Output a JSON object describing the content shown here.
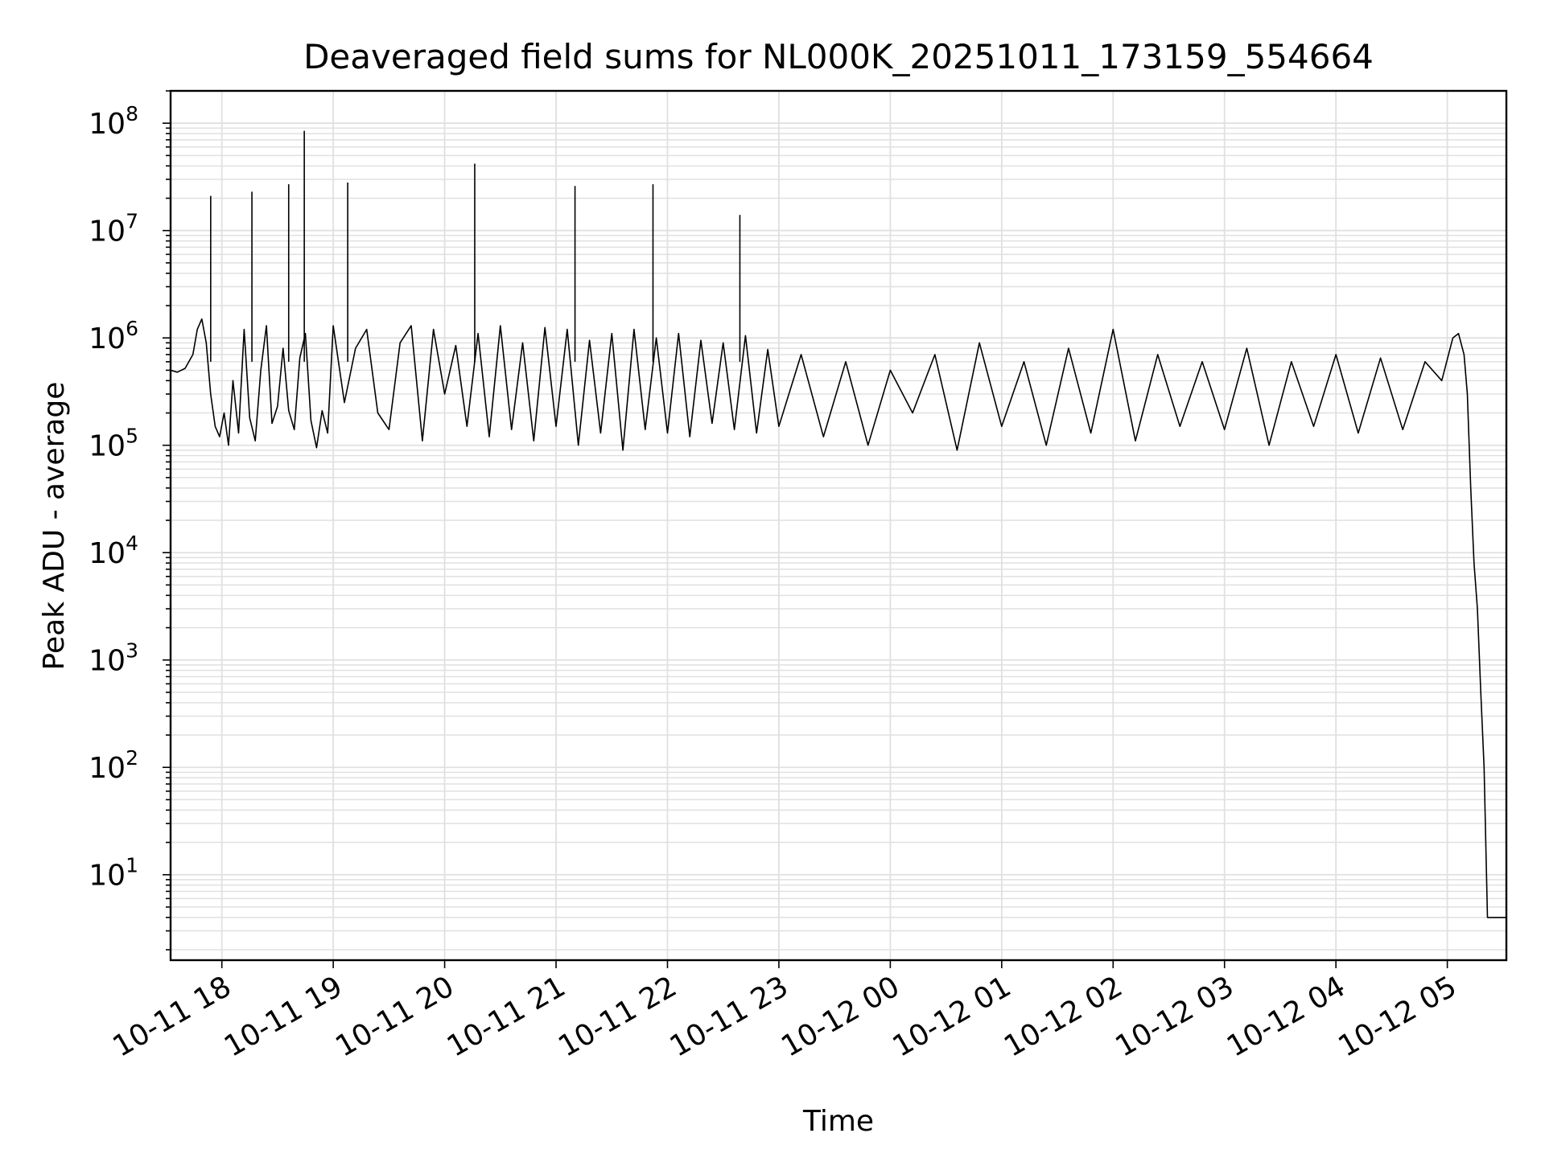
{
  "chart_data": {
    "type": "line",
    "title": "Deaveraged field sums for NL000K_20251011_173159_554664",
    "xlabel": "Time",
    "ylabel": "Peak ADU - average",
    "yscale": "log",
    "ylim": [
      1.6,
      200000000
    ],
    "xlim_hours": [
      -0.46,
      11.53
    ],
    "grid": true,
    "grid_minor": true,
    "line_color": "#000000",
    "grid_color": "#e0e0e0",
    "x_ticks": [
      {
        "hour": 0,
        "label": "10-11 18"
      },
      {
        "hour": 1,
        "label": "10-11 19"
      },
      {
        "hour": 2,
        "label": "10-11 20"
      },
      {
        "hour": 3,
        "label": "10-11 21"
      },
      {
        "hour": 4,
        "label": "10-11 22"
      },
      {
        "hour": 5,
        "label": "10-11 23"
      },
      {
        "hour": 6,
        "label": "10-12 00"
      },
      {
        "hour": 7,
        "label": "10-12 01"
      },
      {
        "hour": 8,
        "label": "10-12 02"
      },
      {
        "hour": 9,
        "label": "10-12 03"
      },
      {
        "hour": 10,
        "label": "10-12 04"
      },
      {
        "hour": 11,
        "label": "10-12 05"
      }
    ],
    "y_ticks": [
      {
        "exp": 1,
        "base": "10",
        "sup": "1"
      },
      {
        "exp": 2,
        "base": "10",
        "sup": "2"
      },
      {
        "exp": 3,
        "base": "10",
        "sup": "3"
      },
      {
        "exp": 4,
        "base": "10",
        "sup": "4"
      },
      {
        "exp": 5,
        "base": "10",
        "sup": "5"
      },
      {
        "exp": 6,
        "base": "10",
        "sup": "6"
      },
      {
        "exp": 7,
        "base": "10",
        "sup": "7"
      },
      {
        "exp": 8,
        "base": "10",
        "sup": "8"
      }
    ],
    "series": [
      {
        "name": "Peak ADU - average",
        "x_hours": [
          -0.46,
          -0.4,
          -0.33,
          -0.26,
          -0.22,
          -0.18,
          -0.14,
          -0.1,
          -0.06,
          -0.02,
          0.02,
          0.06,
          0.1,
          0.15,
          0.2,
          0.25,
          0.3,
          0.35,
          0.4,
          0.45,
          0.5,
          0.55,
          0.6,
          0.65,
          0.7,
          0.75,
          0.8,
          0.85,
          0.9,
          0.95,
          1.0,
          1.1,
          1.2,
          1.3,
          1.4,
          1.5,
          1.6,
          1.7,
          1.8,
          1.9,
          2.0,
          2.1,
          2.2,
          2.3,
          2.4,
          2.5,
          2.6,
          2.7,
          2.8,
          2.9,
          3.0,
          3.1,
          3.2,
          3.3,
          3.4,
          3.5,
          3.6,
          3.7,
          3.8,
          3.9,
          4.0,
          4.1,
          4.2,
          4.3,
          4.4,
          4.5,
          4.6,
          4.7,
          4.8,
          4.9,
          5.0,
          5.2,
          5.4,
          5.6,
          5.8,
          6.0,
          6.2,
          6.4,
          6.6,
          6.8,
          7.0,
          7.2,
          7.4,
          7.6,
          7.8,
          8.0,
          8.2,
          8.4,
          8.6,
          8.8,
          9.0,
          9.2,
          9.4,
          9.6,
          9.8,
          10.0,
          10.2,
          10.4,
          10.6,
          10.8,
          10.95,
          11.05,
          11.1,
          11.15,
          11.18,
          11.21,
          11.24,
          11.27,
          11.3,
          11.33,
          11.36,
          11.4,
          11.45,
          11.53
        ],
        "values": [
          500000,
          480000,
          520000,
          700000,
          1200000,
          1500000,
          900000,
          300000,
          150000,
          120000,
          200000,
          100000,
          400000,
          130000,
          1200000,
          180000,
          110000,
          500000,
          1300000,
          160000,
          230000,
          800000,
          210000,
          140000,
          650000,
          1100000,
          170000,
          95000,
          210000,
          130000,
          1300000,
          250000,
          800000,
          1200000,
          200000,
          140000,
          900000,
          1300000,
          110000,
          1200000,
          300000,
          850000,
          150000,
          1100000,
          120000,
          1300000,
          140000,
          900000,
          110000,
          1250000,
          150000,
          1200000,
          100000,
          950000,
          130000,
          1100000,
          90000,
          1200000,
          140000,
          1000000,
          130000,
          1100000,
          120000,
          950000,
          160000,
          900000,
          140000,
          1050000,
          130000,
          780000,
          150000,
          700000,
          120000,
          600000,
          100000,
          500000,
          200000,
          700000,
          90000,
          900000,
          150000,
          600000,
          100000,
          800000,
          130000,
          1200000,
          110000,
          700000,
          150000,
          600000,
          140000,
          800000,
          100000,
          600000,
          150000,
          700000,
          130000,
          650000,
          140000,
          600000,
          400000,
          1000000,
          1100000,
          700000,
          300000,
          40000,
          8000,
          3000,
          500,
          100,
          4,
          4,
          4,
          4
        ],
        "spikes": [
          {
            "hour": -0.1,
            "value": 21000000
          },
          {
            "hour": 0.27,
            "value": 23000000
          },
          {
            "hour": 0.6,
            "value": 27000000
          },
          {
            "hour": 0.74,
            "value": 85000000
          },
          {
            "hour": 1.13,
            "value": 28000000
          },
          {
            "hour": 2.27,
            "value": 42000000
          },
          {
            "hour": 3.17,
            "value": 26000000
          },
          {
            "hour": 3.87,
            "value": 27000000
          },
          {
            "hour": 4.65,
            "value": 14000000
          }
        ]
      }
    ]
  }
}
